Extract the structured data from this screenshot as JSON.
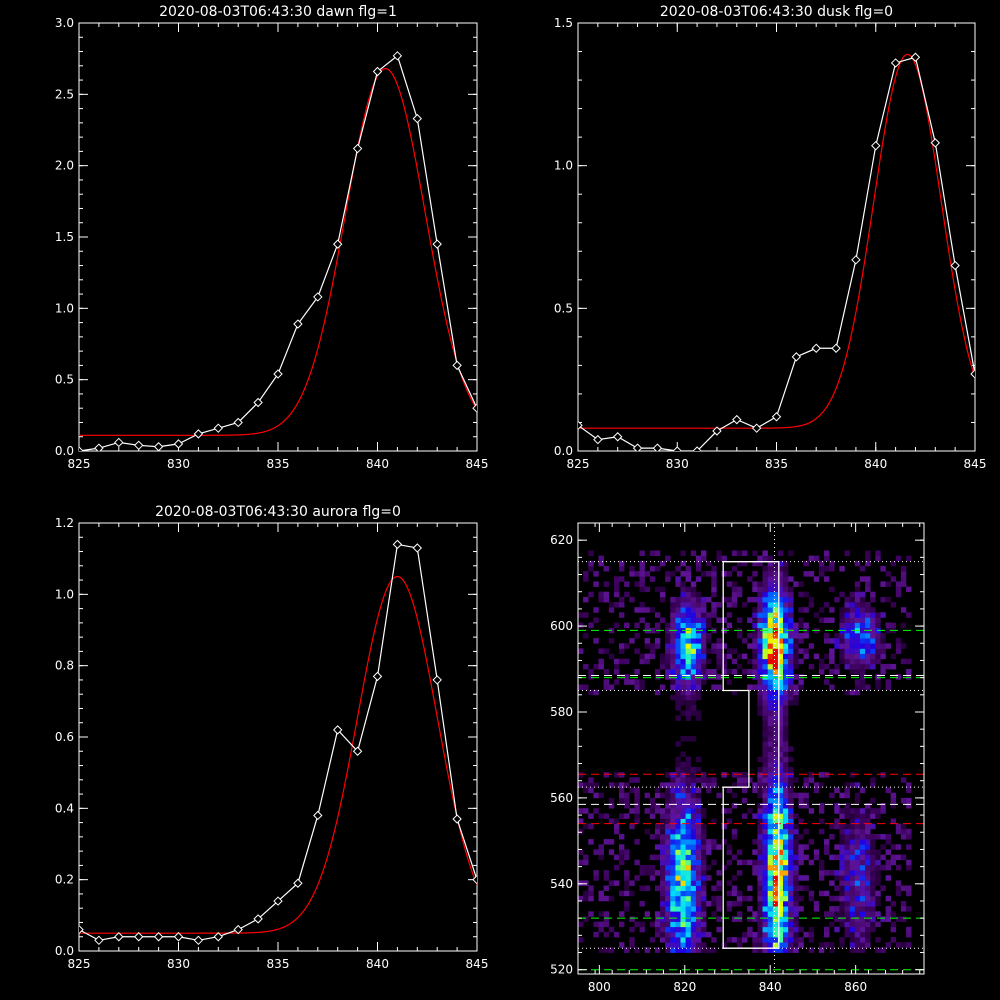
{
  "chart_data": [
    {
      "type": "line",
      "title": "2020-08-03T06:43:30 dawn flg=1",
      "xlim": [
        825,
        845
      ],
      "ylim": [
        0,
        3.0
      ],
      "xticks": [
        "825",
        "830",
        "835",
        "840",
        "845"
      ],
      "yticks": [
        "0.0",
        "0.5",
        "1.0",
        "1.5",
        "2.0",
        "2.5",
        "3.0"
      ],
      "series": [
        {
          "color": "#ffffff",
          "marker": "diamond",
          "x": [
            825,
            826,
            827,
            828,
            829,
            830,
            831,
            832,
            833,
            834,
            835,
            836,
            837,
            838,
            839,
            840,
            841,
            842,
            843,
            844,
            845
          ],
          "y": [
            0.0,
            0.02,
            0.06,
            0.04,
            0.03,
            0.05,
            0.12,
            0.16,
            0.2,
            0.34,
            0.54,
            0.89,
            1.08,
            1.45,
            2.12,
            2.66,
            2.77,
            2.33,
            1.45,
            0.6,
            0.3
          ]
        },
        {
          "color": "#ff0000",
          "fit": {
            "baseline": 0.11,
            "amplitude": 2.57,
            "center": 840.4,
            "sigma": 2.0
          }
        }
      ]
    },
    {
      "type": "line",
      "title": "2020-08-03T06:43:30 dusk flg=0",
      "xlim": [
        825,
        845
      ],
      "ylim": [
        0,
        1.5
      ],
      "xticks": [
        "825",
        "830",
        "835",
        "840",
        "845"
      ],
      "yticks": [
        "0.0",
        "0.5",
        "1.0",
        "1.5"
      ],
      "series": [
        {
          "color": "#ffffff",
          "marker": "diamond",
          "x": [
            825,
            826,
            827,
            828,
            829,
            830,
            831,
            832,
            833,
            834,
            835,
            836,
            837,
            838,
            839,
            840,
            841,
            842,
            843,
            844,
            845
          ],
          "y": [
            0.09,
            0.04,
            0.05,
            0.01,
            0.01,
            0.0,
            0.0,
            0.07,
            0.11,
            0.08,
            0.12,
            0.33,
            0.36,
            0.36,
            0.67,
            1.07,
            1.36,
            1.38,
            1.08,
            0.65,
            0.27
          ]
        },
        {
          "color": "#ff0000",
          "fit": {
            "baseline": 0.08,
            "amplitude": 1.31,
            "center": 841.6,
            "sigma": 1.7
          }
        }
      ]
    },
    {
      "type": "line",
      "title": "2020-08-03T06:43:30 aurora flg=0",
      "xlim": [
        825,
        845
      ],
      "ylim": [
        0,
        1.2
      ],
      "xticks": [
        "825",
        "830",
        "835",
        "840",
        "845"
      ],
      "yticks": [
        "0.0",
        "0.2",
        "0.4",
        "0.6",
        "0.8",
        "1.0",
        "1.2"
      ],
      "series": [
        {
          "color": "#ffffff",
          "marker": "diamond",
          "x": [
            825,
            826,
            827,
            828,
            829,
            830,
            831,
            832,
            833,
            834,
            835,
            836,
            837,
            838,
            839,
            840,
            841,
            842,
            843,
            844,
            845
          ],
          "y": [
            0.06,
            0.03,
            0.04,
            0.04,
            0.04,
            0.04,
            0.03,
            0.04,
            0.06,
            0.09,
            0.14,
            0.19,
            0.38,
            0.62,
            0.56,
            0.77,
            1.14,
            1.13,
            0.76,
            0.37,
            0.2
          ]
        },
        {
          "color": "#ff0000",
          "fit": {
            "baseline": 0.05,
            "amplitude": 1.0,
            "center": 841.0,
            "sigma": 2.0
          }
        }
      ]
    },
    {
      "type": "heatmap",
      "xlim": [
        795,
        876
      ],
      "ylim": [
        519,
        624
      ],
      "xticks": [
        "800",
        "820",
        "840",
        "860"
      ],
      "yticks": [
        "520",
        "540",
        "560",
        "580",
        "600",
        "620"
      ],
      "blobs": [
        {
          "x": 820,
          "y": 595,
          "sx": 2.5,
          "sy": 7,
          "amp": 0.62
        },
        {
          "x": 840.5,
          "y": 595,
          "sx": 2.3,
          "sy": 9,
          "amp": 0.95
        },
        {
          "x": 860.5,
          "y": 597,
          "sx": 3,
          "sy": 5,
          "amp": 0.42
        },
        {
          "x": 819,
          "y": 540,
          "sx": 2.8,
          "sy": 14,
          "amp": 0.62
        },
        {
          "x": 841,
          "y": 542,
          "sx": 2.2,
          "sy": 16,
          "amp": 0.85
        },
        {
          "x": 860,
          "y": 540,
          "sx": 3,
          "sy": 12,
          "amp": 0.25
        }
      ],
      "vertical_dotted_line_x": 841,
      "horizontal_lines": [
        {
          "y": 615,
          "style": "dotted",
          "color": "#ffffff"
        },
        {
          "y": 599,
          "style": "dashed",
          "color": "#00ff00"
        },
        {
          "y": 588.5,
          "style": "dashed",
          "color": "#ffffff"
        },
        {
          "y": 588,
          "style": "dashed",
          "color": "#00ff00"
        },
        {
          "y": 585,
          "style": "dotted",
          "color": "#ffffff"
        },
        {
          "y": 565.5,
          "style": "dashed",
          "color": "#ff0000"
        },
        {
          "y": 562.5,
          "style": "dotted",
          "color": "#ffffff"
        },
        {
          "y": 558.5,
          "style": "dashed",
          "color": "#ffffff"
        },
        {
          "y": 554,
          "style": "dashed",
          "color": "#ff0000"
        },
        {
          "y": 532,
          "style": "dashed",
          "color": "#00ff00"
        },
        {
          "y": 525,
          "style": "dotted",
          "color": "#ffffff"
        },
        {
          "y": 520,
          "style": "dashed",
          "color": "#00ff00"
        }
      ],
      "outline_polygon": [
        [
          829,
          615
        ],
        [
          842,
          615
        ],
        [
          842,
          525
        ],
        [
          829,
          525
        ],
        [
          829,
          562.5
        ],
        [
          835,
          562.5
        ],
        [
          835,
          585
        ],
        [
          829,
          585
        ]
      ]
    }
  ]
}
